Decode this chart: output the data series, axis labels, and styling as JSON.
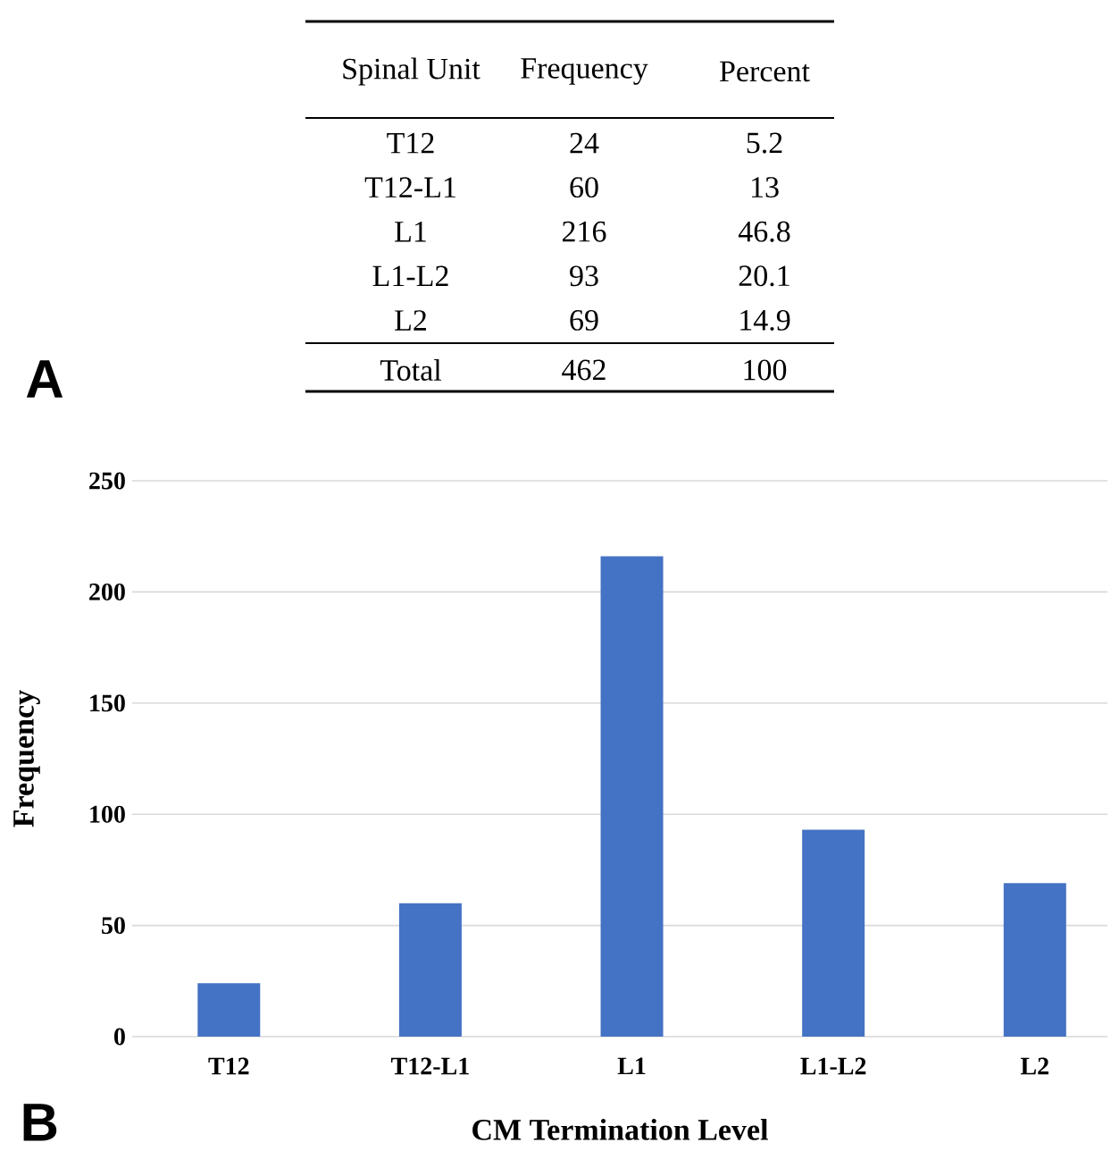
{
  "chart_data": [
    {
      "type": "other",
      "title": "A",
      "annotations": [
        "Spinal Unit",
        "Frequency",
        "Percent",
        "T12",
        "24",
        "5.2",
        "T12-L1",
        "60",
        "13",
        "L1",
        "216",
        "46.8",
        "L1-L2",
        "93",
        "20.1",
        "L2",
        "69",
        "14.9",
        "Total",
        "462",
        "100"
      ]
    },
    {
      "type": "bar",
      "title": "B",
      "xlabel": "CM Termination Level",
      "ylabel": "Frequency",
      "categories": [
        "T12",
        "T12-L1",
        "L1",
        "L1-L2",
        "L2"
      ],
      "values": [
        24,
        60,
        216,
        93,
        69
      ],
      "color": "#4472c4",
      "ylim": [
        0,
        250
      ],
      "yticks": [
        0,
        50,
        100,
        150,
        200,
        250
      ],
      "grid": "y"
    }
  ]
}
